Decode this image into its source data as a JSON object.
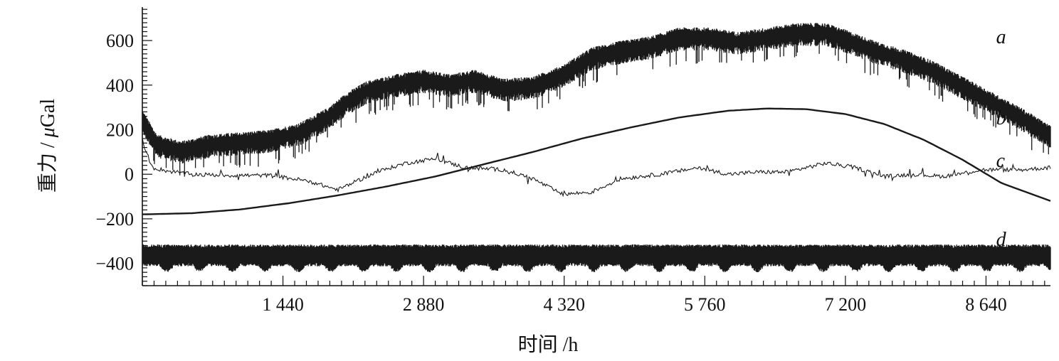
{
  "chart_data": {
    "type": "line",
    "title": "",
    "xlabel": "时间 /h",
    "ylabel_parts": {
      "prefix": "重力 / ",
      "mu": "μ",
      "suffix": "Gal"
    },
    "xlim": [
      0,
      9300
    ],
    "ylim": [
      -500,
      750
    ],
    "x_ticks": [
      {
        "value": 1440,
        "label": "1 440"
      },
      {
        "value": 2880,
        "label": "2 880"
      },
      {
        "value": 4320,
        "label": "4 320"
      },
      {
        "value": 5760,
        "label": "5 760"
      },
      {
        "value": 7200,
        "label": "7 200"
      },
      {
        "value": 8640,
        "label": "8 640"
      }
    ],
    "y_ticks": [
      {
        "value": 600,
        "label": "600"
      },
      {
        "value": 400,
        "label": "400"
      },
      {
        "value": 200,
        "label": "200"
      },
      {
        "value": 0,
        "label": "0"
      },
      {
        "value": -200,
        "label": "−200"
      },
      {
        "value": -400,
        "label": "−400"
      }
    ],
    "series": [
      {
        "name": "a",
        "style": "noisy-band",
        "color": "#1a1a1a",
        "label_at": [
          6520,
          620
        ],
        "points": [
          [
            0,
            250
          ],
          [
            150,
            140
          ],
          [
            400,
            110
          ],
          [
            700,
            140
          ],
          [
            1000,
            150
          ],
          [
            1300,
            160
          ],
          [
            1600,
            190
          ],
          [
            1900,
            260
          ],
          [
            2100,
            330
          ],
          [
            2300,
            380
          ],
          [
            2600,
            410
          ],
          [
            2880,
            430
          ],
          [
            3150,
            410
          ],
          [
            3400,
            430
          ],
          [
            3700,
            390
          ],
          [
            4000,
            400
          ],
          [
            4300,
            450
          ],
          [
            4600,
            530
          ],
          [
            4900,
            560
          ],
          [
            5200,
            580
          ],
          [
            5500,
            620
          ],
          [
            5800,
            620
          ],
          [
            6100,
            600
          ],
          [
            6400,
            620
          ],
          [
            6700,
            640
          ],
          [
            7000,
            640
          ],
          [
            7200,
            610
          ],
          [
            7500,
            560
          ],
          [
            7800,
            520
          ],
          [
            8100,
            470
          ],
          [
            8400,
            400
          ],
          [
            8700,
            330
          ],
          [
            9000,
            260
          ],
          [
            9300,
            180
          ]
        ]
      },
      {
        "name": "b",
        "style": "smooth",
        "color": "#1a1a1a",
        "label_at": [
          6520,
          255
        ],
        "points": [
          [
            0,
            -180
          ],
          [
            500,
            -175
          ],
          [
            1000,
            -158
          ],
          [
            1500,
            -130
          ],
          [
            2000,
            -95
          ],
          [
            2500,
            -55
          ],
          [
            3000,
            -10
          ],
          [
            3500,
            45
          ],
          [
            4000,
            100
          ],
          [
            4500,
            160
          ],
          [
            5000,
            210
          ],
          [
            5500,
            255
          ],
          [
            6000,
            285
          ],
          [
            6400,
            295
          ],
          [
            6800,
            292
          ],
          [
            7200,
            270
          ],
          [
            7600,
            225
          ],
          [
            8000,
            155
          ],
          [
            8400,
            65
          ],
          [
            8800,
            -40
          ],
          [
            9300,
            -120
          ]
        ]
      },
      {
        "name": "c",
        "style": "noisy-line",
        "color": "#1a1a1a",
        "label_at": [
          6520,
          65
        ],
        "points": [
          [
            0,
            150
          ],
          [
            100,
            30
          ],
          [
            250,
            15
          ],
          [
            500,
            0
          ],
          [
            900,
            -5
          ],
          [
            1300,
            -5
          ],
          [
            1700,
            -30
          ],
          [
            2000,
            -70
          ],
          [
            2400,
            10
          ],
          [
            2700,
            50
          ],
          [
            3000,
            70
          ],
          [
            3300,
            30
          ],
          [
            3700,
            20
          ],
          [
            4000,
            -20
          ],
          [
            4300,
            -90
          ],
          [
            4600,
            -80
          ],
          [
            4900,
            -20
          ],
          [
            5300,
            0
          ],
          [
            5700,
            30
          ],
          [
            6000,
            0
          ],
          [
            6300,
            10
          ],
          [
            6600,
            10
          ],
          [
            7000,
            50
          ],
          [
            7300,
            30
          ],
          [
            7600,
            -10
          ],
          [
            7900,
            0
          ],
          [
            8200,
            -10
          ],
          [
            8600,
            20
          ],
          [
            9000,
            20
          ],
          [
            9300,
            30
          ]
        ]
      },
      {
        "name": "d",
        "style": "periodic-band",
        "color": "#1a1a1a",
        "label_at": [
          6520,
          -290
        ],
        "points": [
          [
            0,
            -360
          ],
          [
            9300,
            -360
          ]
        ]
      }
    ]
  }
}
